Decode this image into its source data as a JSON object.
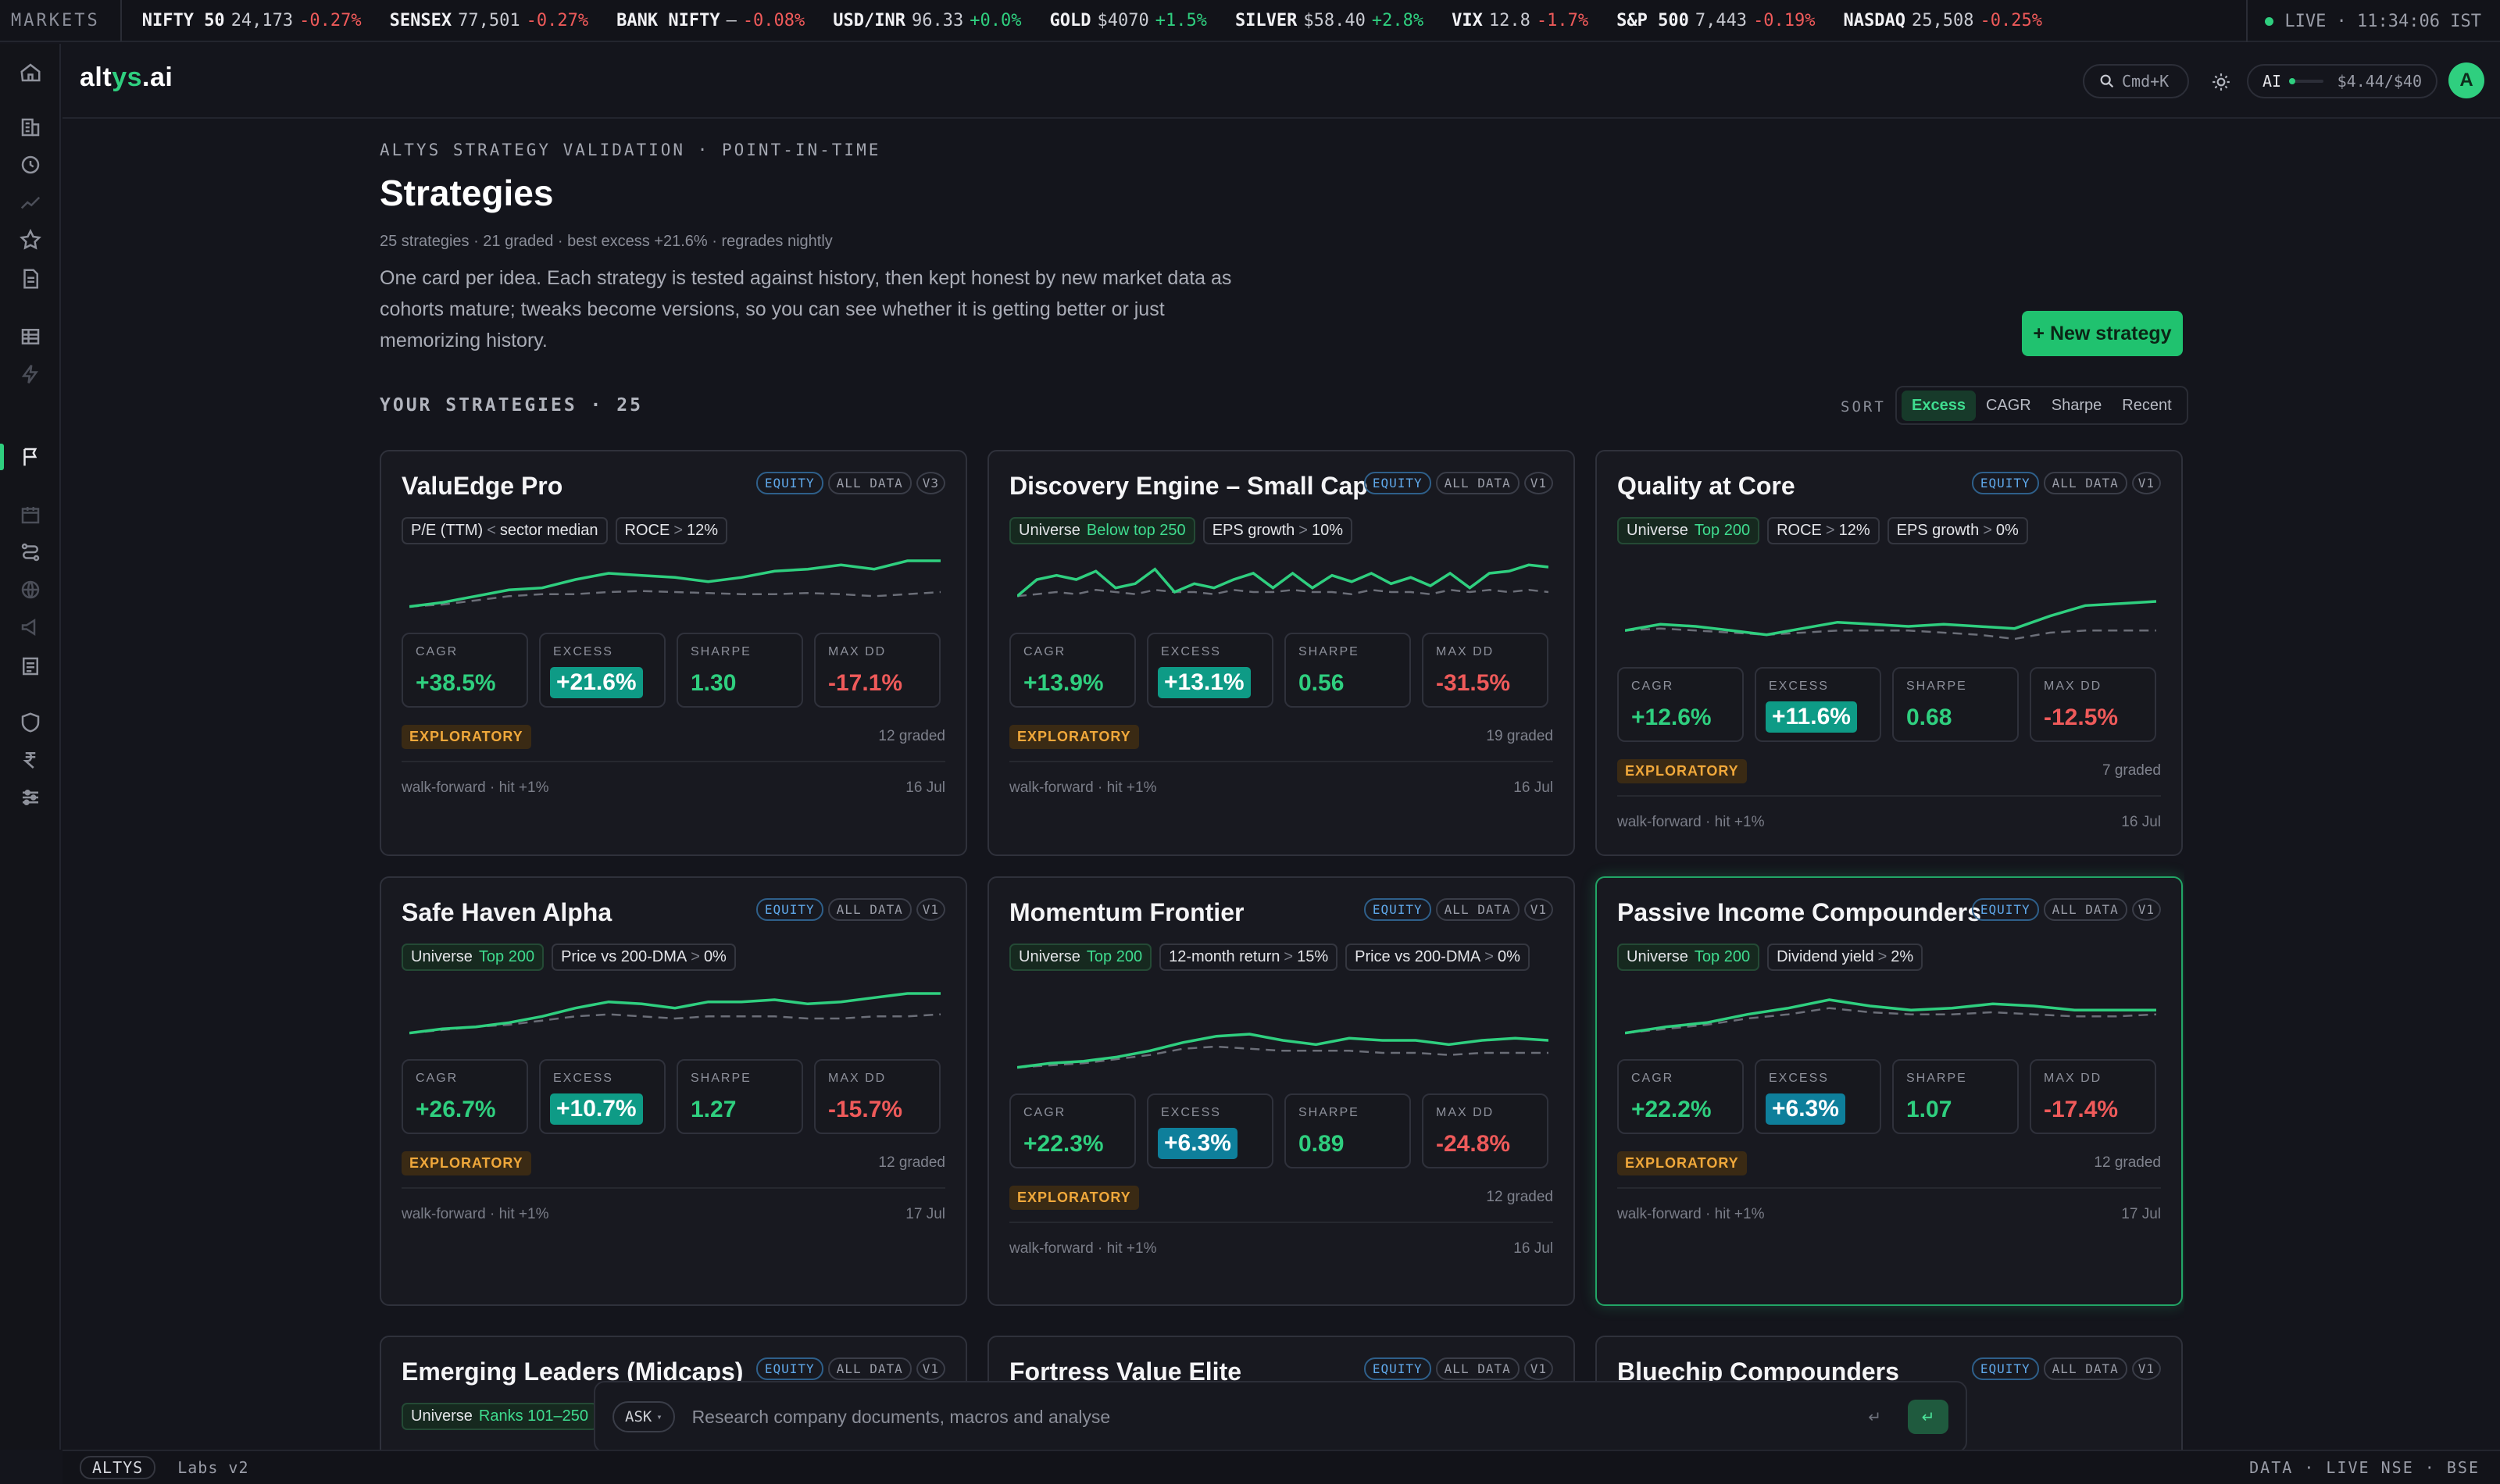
{
  "ticker": {
    "label": "MARKETS",
    "items": [
      {
        "name": "NIFTY 50",
        "value": "24,173",
        "change": "-0.27%",
        "dir": "dn"
      },
      {
        "name": "SENSEX",
        "value": "77,501",
        "change": "-0.27%",
        "dir": "dn"
      },
      {
        "name": "BANK NIFTY",
        "value": "—",
        "change": "-0.08%",
        "dir": "dn"
      },
      {
        "name": "USD/INR",
        "value": "96.33",
        "change": "+0.0%",
        "dir": "up"
      },
      {
        "name": "GOLD",
        "value": "$4070",
        "change": "+1.5%",
        "dir": "up"
      },
      {
        "name": "SILVER",
        "value": "$58.40",
        "change": "+2.8%",
        "dir": "up"
      },
      {
        "name": "VIX",
        "value": "12.8",
        "change": "-1.7%",
        "dir": "dn"
      },
      {
        "name": "S&P 500",
        "value": "7,443",
        "change": "-0.19%",
        "dir": "dn"
      },
      {
        "name": "NASDAQ",
        "value": "25,508",
        "change": "-0.25%",
        "dir": "dn"
      }
    ],
    "live": "LIVE · 11:34:06 IST"
  },
  "header": {
    "logo_a": "alt",
    "logo_b": "ys",
    "logo_c": ".ai",
    "search_hint": "Cmd+K",
    "ai_label": "AI",
    "ai_budget": "$4.44/$40",
    "avatar": "A",
    "accent": "#2fcf7f"
  },
  "page": {
    "eyebrow": "ALTYS STRATEGY VALIDATION · POINT-IN-TIME",
    "title": "Strategies",
    "meta": "25 strategies · 21 graded · best excess +21.6% · regrades nightly",
    "description": "One card per idea. Each strategy is tested against history, then kept honest by new market data as cohorts mature; tweaks become versions, so you can see whether it is getting better or just memorizing history.",
    "new_button": "+ New strategy",
    "section_title": "YOUR STRATEGIES · 25",
    "sort_label": "SORT",
    "sort_options": [
      "Excess",
      "CAGR",
      "Sharpe",
      "Recent"
    ],
    "sort_selected": "Excess"
  },
  "labels": {
    "cagr": "CAGR",
    "excess": "EXCESS",
    "sharpe": "SHARPE",
    "maxdd": "MAX DD"
  },
  "cards": [
    {
      "name": "ValuEdge Pro",
      "tags": [
        "EQUITY",
        "ALL DATA",
        "V3"
      ],
      "chips": [
        {
          "type": "cond",
          "field": "P/E (TTM)",
          "op": "<",
          "value": "sector median"
        },
        {
          "type": "cond",
          "field": "ROCE",
          "op": ">",
          "value": "12%"
        }
      ],
      "strategy": [
        30,
        34,
        40,
        46,
        48,
        56,
        62,
        60,
        58,
        54,
        58,
        64,
        66,
        70,
        66,
        74,
        74
      ],
      "benchmark": [
        30,
        32,
        36,
        40,
        42,
        42,
        44,
        45,
        44,
        43,
        42,
        42,
        43,
        42,
        40,
        42,
        44
      ],
      "cagr": "+38.5%",
      "excess": "+21.6%",
      "sharpe": "1.30",
      "maxdd": "-17.1%",
      "badge": "EXPLORATORY",
      "graded": "12 graded",
      "foot": "walk-forward · hit +1%",
      "date": "16 Jul"
    },
    {
      "name": "Discovery Engine – Small Cap",
      "tags": [
        "EQUITY",
        "ALL DATA",
        "V1"
      ],
      "chips": [
        {
          "type": "uni",
          "field": "Universe",
          "value": "Below top 250"
        },
        {
          "type": "cond",
          "field": "EPS growth",
          "op": ">",
          "value": "10%"
        }
      ],
      "strategy": [
        40,
        56,
        60,
        56,
        64,
        48,
        52,
        66,
        44,
        52,
        48,
        56,
        62,
        48,
        62,
        48,
        60,
        54,
        62,
        52,
        58,
        50,
        62,
        48,
        62,
        64,
        70,
        68
      ],
      "benchmark": [
        40,
        42,
        44,
        42,
        46,
        44,
        42,
        46,
        44,
        44,
        42,
        46,
        44,
        44,
        46,
        44,
        44,
        42,
        46,
        44,
        44,
        42,
        46,
        44,
        46,
        44,
        46,
        44
      ],
      "cagr": "+13.9%",
      "excess": "+13.1%",
      "sharpe": "0.56",
      "maxdd": "-31.5%",
      "badge": "EXPLORATORY",
      "graded": "19 graded",
      "foot": "walk-forward · hit +1%",
      "date": "16 Jul"
    },
    {
      "name": "Quality at Core",
      "tags": [
        "EQUITY",
        "ALL DATA",
        "V1"
      ],
      "chips": [
        {
          "type": "uni",
          "field": "Universe",
          "value": "Top 200"
        },
        {
          "type": "cond",
          "field": "ROCE",
          "op": ">",
          "value": "12%"
        },
        {
          "type": "cond",
          "field": "EPS growth",
          "op": ">",
          "value": "0%"
        }
      ],
      "strategy": [
        40,
        46,
        44,
        40,
        36,
        42,
        48,
        46,
        44,
        46,
        44,
        42,
        54,
        64,
        66,
        68
      ],
      "benchmark": [
        40,
        42,
        40,
        38,
        36,
        38,
        40,
        40,
        40,
        38,
        36,
        32,
        38,
        40,
        40,
        40
      ],
      "cagr": "+12.6%",
      "excess": "+11.6%",
      "sharpe": "0.68",
      "maxdd": "-12.5%",
      "badge": "EXPLORATORY",
      "graded": "7 graded",
      "foot": "walk-forward · hit +1%",
      "date": "16 Jul"
    },
    {
      "name": "Safe Haven Alpha",
      "tags": [
        "EQUITY",
        "ALL DATA",
        "V1"
      ],
      "chips": [
        {
          "type": "uni",
          "field": "Universe",
          "value": "Top 200"
        },
        {
          "type": "cond",
          "field": "Price vs 200-DMA",
          "op": ">",
          "value": "0%"
        }
      ],
      "strategy": [
        30,
        34,
        36,
        40,
        46,
        54,
        60,
        58,
        54,
        60,
        60,
        62,
        58,
        60,
        64,
        68,
        68
      ],
      "benchmark": [
        30,
        33,
        36,
        38,
        42,
        46,
        48,
        46,
        44,
        46,
        46,
        46,
        44,
        44,
        46,
        46,
        48
      ],
      "cagr": "+26.7%",
      "excess": "+10.7%",
      "sharpe": "1.27",
      "maxdd": "-15.7%",
      "badge": "EXPLORATORY",
      "graded": "12 graded",
      "foot": "walk-forward · hit +1%",
      "date": "17 Jul"
    },
    {
      "name": "Momentum Frontier",
      "tags": [
        "EQUITY",
        "ALL DATA",
        "V1"
      ],
      "chips": [
        {
          "type": "uni",
          "field": "Universe",
          "value": "Top 200"
        },
        {
          "type": "cond",
          "field": "12-month return",
          "op": ">",
          "value": "15%"
        },
        {
          "type": "cond",
          "field": "Price vs 200-DMA",
          "op": ">",
          "value": "0%"
        }
      ],
      "strategy": [
        30,
        34,
        36,
        40,
        46,
        54,
        60,
        62,
        56,
        52,
        58,
        56,
        56,
        52,
        56,
        58,
        56
      ],
      "benchmark": [
        30,
        32,
        34,
        38,
        42,
        48,
        50,
        48,
        46,
        46,
        46,
        44,
        44,
        42,
        44,
        44,
        44
      ],
      "cagr": "+22.3%",
      "excess": "+6.3%",
      "sharpe": "0.89",
      "maxdd": "-24.8%",
      "badge": "EXPLORATORY",
      "graded": "12 graded",
      "foot": "walk-forward · hit +1%",
      "date": "16 Jul"
    },
    {
      "name": "Passive Income Compounders",
      "tags": [
        "EQUITY",
        "ALL DATA",
        "V1"
      ],
      "chips": [
        {
          "type": "uni",
          "field": "Universe",
          "value": "Top 200"
        },
        {
          "type": "cond",
          "field": "Dividend yield",
          "op": ">",
          "value": "2%"
        }
      ],
      "strategy": [
        30,
        36,
        40,
        48,
        54,
        62,
        56,
        52,
        54,
        58,
        56,
        52,
        52,
        52
      ],
      "benchmark": [
        30,
        34,
        38,
        44,
        48,
        54,
        50,
        48,
        48,
        50,
        48,
        46,
        46,
        48
      ],
      "cagr": "+22.2%",
      "excess": "+6.3%",
      "sharpe": "1.07",
      "maxdd": "-17.4%",
      "badge": "EXPLORATORY",
      "graded": "12 graded",
      "foot": "walk-forward · hit +1%",
      "date": "17 Jul"
    },
    {
      "name": "Emerging Leaders (Midcaps)",
      "tags": [
        "EQUITY",
        "ALL DATA",
        "V1"
      ],
      "chips": [
        {
          "type": "uni",
          "field": "Universe",
          "value": "Ranks 101–250"
        }
      ],
      "strategy": [],
      "benchmark": []
    },
    {
      "name": "Fortress Value Elite",
      "tags": [
        "EQUITY",
        "ALL DATA",
        "V1"
      ],
      "chips": [],
      "strategy": [],
      "benchmark": []
    },
    {
      "name": "Bluechip Compounders",
      "tags": [
        "EQUITY",
        "ALL DATA",
        "V1"
      ],
      "chips": [],
      "strategy": [],
      "benchmark": []
    }
  ],
  "ask": {
    "button": "ASK",
    "placeholder": "Research company documents, macros and analyse",
    "enter_hint": "↵",
    "send": "↵"
  },
  "status": {
    "brand": "ALTYS",
    "label": "Labs v2",
    "right": "DATA · LIVE  NSE · BSE"
  }
}
